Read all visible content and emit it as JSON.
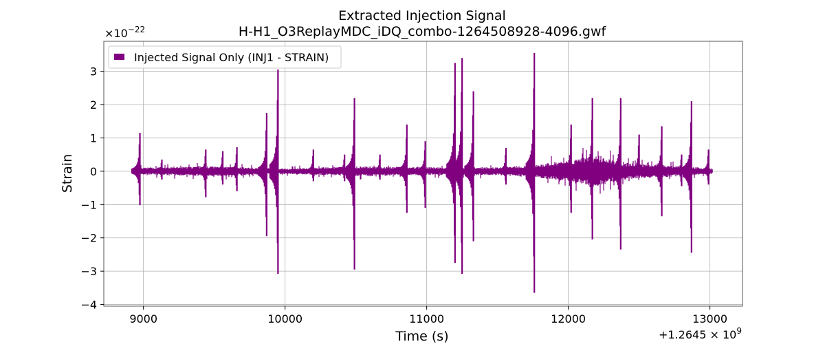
{
  "chart_data": {
    "type": "line",
    "title": "Extracted Injection Signal",
    "subtitle": "H-H1_O3ReplayMDC_iDQ_combo-1264508928-4096.gwf",
    "xlabel": "Time (s)",
    "ylabel": "Strain",
    "x_offset_label": "+1.2645 × 10",
    "x_offset_exponent": "9",
    "y_multiplier_label": "×10",
    "y_multiplier_exponent": "−22",
    "xlim": [
      8720,
      13230
    ],
    "ylim": [
      -4.05,
      3.9
    ],
    "x_ticks": [
      9000,
      10000,
      11000,
      12000,
      13000
    ],
    "x_tick_labels": [
      "9000",
      "10000",
      "11000",
      "12000",
      "13000"
    ],
    "y_ticks": [
      -4,
      -3,
      -2,
      -1,
      0,
      1,
      2,
      3
    ],
    "y_tick_labels": [
      "−4",
      "−3",
      "−2",
      "−1",
      "0",
      "1",
      "2",
      "3"
    ],
    "grid": true,
    "legend_position": "top-left",
    "color": "#800080",
    "series": [
      {
        "name": "Injected Signal Only (INJ1 - STRAIN)",
        "x_range": [
          8920,
          13020
        ],
        "baseline_envelope": [
          [
            8920,
            0.1
          ],
          [
            9500,
            0.15
          ],
          [
            10000,
            0.08
          ],
          [
            10500,
            0.15
          ],
          [
            11000,
            0.12
          ],
          [
            11500,
            0.12
          ],
          [
            11800,
            0.2
          ],
          [
            12000,
            0.35
          ],
          [
            12200,
            0.45
          ],
          [
            12400,
            0.25
          ],
          [
            12800,
            0.15
          ],
          [
            13020,
            0.08
          ]
        ],
        "bursts": [
          {
            "x": 8975,
            "max": 1.15,
            "min": -1.02
          },
          {
            "x": 9130,
            "max": 0.35,
            "min": -0.25
          },
          {
            "x": 9440,
            "max": 0.65,
            "min": -0.78
          },
          {
            "x": 9560,
            "max": 0.6,
            "min": -0.4
          },
          {
            "x": 9660,
            "max": 0.72,
            "min": -0.6
          },
          {
            "x": 9870,
            "max": 1.75,
            "min": -1.95
          },
          {
            "x": 9950,
            "max": 3.05,
            "min": -3.08
          },
          {
            "x": 10200,
            "max": 0.65,
            "min": -0.3
          },
          {
            "x": 10420,
            "max": 0.5,
            "min": -0.3
          },
          {
            "x": 10490,
            "max": 2.2,
            "min": -2.95
          },
          {
            "x": 10670,
            "max": 0.5,
            "min": -0.25
          },
          {
            "x": 10860,
            "max": 1.4,
            "min": -1.25
          },
          {
            "x": 10990,
            "max": 0.9,
            "min": -1.1
          },
          {
            "x": 11200,
            "max": 3.25,
            "min": -2.75
          },
          {
            "x": 11250,
            "max": 3.4,
            "min": -3.08
          },
          {
            "x": 11330,
            "max": 2.4,
            "min": -2.1
          },
          {
            "x": 11560,
            "max": 0.7,
            "min": -0.4
          },
          {
            "x": 11760,
            "max": 3.55,
            "min": -3.65
          },
          {
            "x": 12020,
            "max": 1.4,
            "min": -1.25
          },
          {
            "x": 12170,
            "max": 2.2,
            "min": -2.05
          },
          {
            "x": 12370,
            "max": 2.2,
            "min": -2.35
          },
          {
            "x": 12500,
            "max": 1.1,
            "min": -0.2
          },
          {
            "x": 12660,
            "max": 1.35,
            "min": -1.35
          },
          {
            "x": 12800,
            "max": 0.5,
            "min": -0.45
          },
          {
            "x": 12870,
            "max": 2.1,
            "min": -2.45
          },
          {
            "x": 12990,
            "max": 0.65,
            "min": -0.4
          }
        ]
      }
    ]
  }
}
